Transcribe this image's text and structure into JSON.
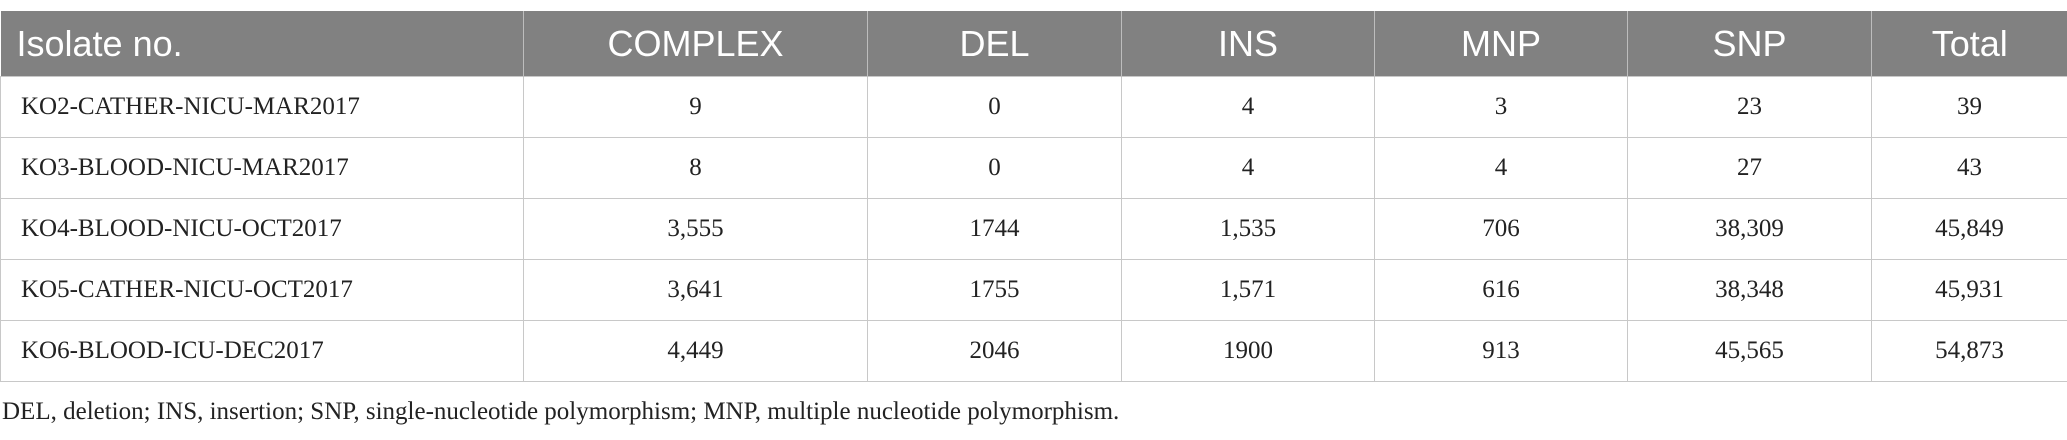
{
  "table": {
    "header": [
      "Isolate no.",
      "COMPLEX",
      "DEL",
      "INS",
      "MNP",
      "SNP",
      "Total"
    ],
    "rows": [
      [
        "KO2-CATHER-NICU-MAR2017",
        "9",
        "0",
        "4",
        "3",
        "23",
        "39"
      ],
      [
        "KO3-BLOOD-NICU-MAR2017",
        "8",
        "0",
        "4",
        "4",
        "27",
        "43"
      ],
      [
        "KO4-BLOOD-NICU-OCT2017",
        "3,555",
        "1744",
        "1,535",
        "706",
        "38,309",
        "45,849"
      ],
      [
        "KO5-CATHER-NICU-OCT2017",
        "3,641",
        "1755",
        "1,571",
        "616",
        "38,348",
        "45,931"
      ],
      [
        "KO6-BLOOD-ICU-DEC2017",
        "4,449",
        "2046",
        "1900",
        "913",
        "45,565",
        "54,873"
      ]
    ]
  },
  "footnote": "DEL, deletion; INS, insertion; SNP, single-nucleotide polymorphism; MNP, multiple nucleotide polymorphism."
}
